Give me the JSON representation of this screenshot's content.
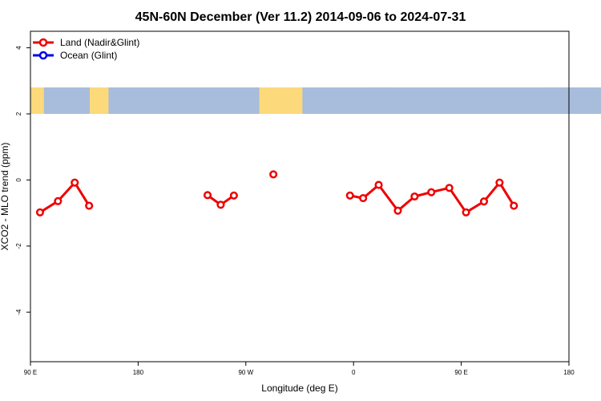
{
  "chart_data": {
    "type": "line",
    "title": "45N-60N December (Ver 11.2)   2014-09-06 to 2024-07-31",
    "xlabel": "Longitude (deg E)",
    "ylabel": "XCO2 - MLO trend (ppm)",
    "xlim": [
      90,
      540
    ],
    "ylim": [
      -5.5,
      4.5
    ],
    "x_ticks": [
      {
        "value": 90,
        "label": "90 E"
      },
      {
        "value": 180,
        "label": "180"
      },
      {
        "value": 270,
        "label": "90 W"
      },
      {
        "value": 360,
        "label": "0"
      },
      {
        "value": 450,
        "label": "90 E"
      },
      {
        "value": 540,
        "label": "180"
      }
    ],
    "y_ticks": [
      {
        "value": 4,
        "label": "4"
      },
      {
        "value": 2,
        "label": "2"
      },
      {
        "value": 0,
        "label": "0"
      },
      {
        "value": -2,
        "label": "-2"
      },
      {
        "value": -4,
        "label": "-4"
      }
    ],
    "map_band": {
      "y_range": [
        2,
        2.8
      ],
      "ocean_color": "#a8bcdc",
      "land_color": "#fcd97a"
    },
    "legend_position": "top-left",
    "series": [
      {
        "name": "Land (Nadir&Glint)",
        "color": "#ee0000",
        "segments": [
          [
            [
              98,
              -0.98
            ],
            [
              113,
              -0.64
            ],
            [
              127,
              -0.08
            ],
            [
              139,
              -0.78
            ]
          ],
          [
            [
              238,
              -0.46
            ],
            [
              249,
              -0.75
            ],
            [
              260,
              -0.47
            ]
          ],
          [
            [
              293,
              0.17
            ]
          ],
          [
            [
              357,
              -0.47
            ],
            [
              368,
              -0.55
            ],
            [
              381,
              -0.15
            ],
            [
              397,
              -0.93
            ],
            [
              411,
              -0.5
            ],
            [
              425,
              -0.37
            ],
            [
              440,
              -0.24
            ],
            [
              454,
              -0.98
            ],
            [
              469,
              -0.65
            ],
            [
              482,
              -0.08
            ],
            [
              494,
              -0.78
            ]
          ]
        ]
      },
      {
        "name": "Ocean (Glint)",
        "color": "#0000ee",
        "segments": []
      }
    ]
  }
}
